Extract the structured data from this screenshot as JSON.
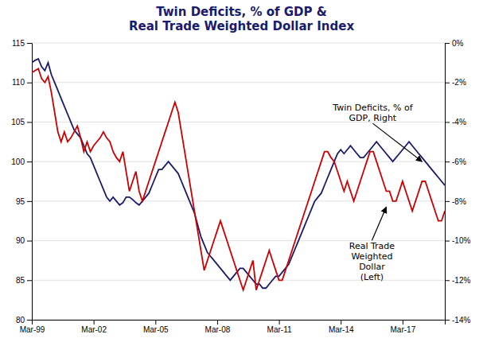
{
  "chart_data": {
    "type": "line",
    "title": "Twin Deficits, % of GDP &\nReal Trade Weighted Dollar Index",
    "categories": [
      "Mar-99",
      null,
      null,
      null,
      null,
      null,
      null,
      null,
      null,
      null,
      null,
      null,
      null,
      null,
      null,
      null,
      null,
      null,
      null,
      "Mar-02",
      null,
      null,
      null,
      null,
      null,
      null,
      null,
      null,
      null,
      null,
      null,
      null,
      null,
      null,
      null,
      null,
      null,
      null,
      "Mar-05",
      null,
      null,
      null,
      null,
      null,
      null,
      null,
      null,
      null,
      null,
      null,
      null,
      null,
      null,
      null,
      null,
      null,
      null,
      "Mar-08",
      null,
      null,
      null,
      null,
      null,
      null,
      null,
      null,
      null,
      null,
      null,
      null,
      null,
      null,
      null,
      null,
      null,
      null,
      "Mar-11",
      null,
      null,
      null,
      null,
      null,
      null,
      null,
      null,
      null,
      null,
      null,
      null,
      null,
      null,
      null,
      null,
      null,
      null,
      "Mar-14",
      null,
      null,
      null,
      null,
      null,
      null,
      null,
      null,
      null,
      null,
      null,
      null,
      null,
      null,
      null,
      null,
      null,
      null,
      "Mar-17",
      null,
      null,
      null,
      null,
      null,
      null,
      null,
      null,
      null,
      null,
      null,
      null,
      null
    ],
    "series": [
      {
        "color": "#1a1a6e",
        "axis": "y",
        "values": [
          112.5,
          112.8,
          113.0,
          112.0,
          111.5,
          112.5,
          111.0,
          110.0,
          109.0,
          108.0,
          107.0,
          106.0,
          105.0,
          104.0,
          103.5,
          103.0,
          102.0,
          101.0,
          100.5,
          99.5,
          98.5,
          97.5,
          96.5,
          95.5,
          95.0,
          95.5,
          95.0,
          94.5,
          94.8,
          95.5,
          95.5,
          95.2,
          94.8,
          94.5,
          95.0,
          95.5,
          96.0,
          97.0,
          98.0,
          99.0,
          99.0,
          99.5,
          100.0,
          99.5,
          99.0,
          98.5,
          97.5,
          96.5,
          95.5,
          94.5,
          93.5,
          92.0,
          90.5,
          89.5,
          88.5,
          88.0,
          87.5,
          87.0,
          86.5,
          86.0,
          85.5,
          85.0,
          85.5,
          86.0,
          86.5,
          86.5,
          86.0,
          85.5,
          85.0,
          84.5,
          84.5,
          84.0,
          84.0,
          84.5,
          85.0,
          85.5,
          85.5,
          86.0,
          86.5,
          87.0,
          88.0,
          89.0,
          90.0,
          91.0,
          92.0,
          93.0,
          94.0,
          95.0,
          95.5,
          96.0,
          97.0,
          98.0,
          99.0,
          100.0,
          101.0,
          101.5,
          101.0,
          101.5,
          102.0,
          101.5,
          101.0,
          100.5,
          100.5,
          101.0,
          101.5,
          102.0,
          102.5,
          102.0,
          101.5,
          101.0,
          100.5,
          100.0,
          100.5,
          101.0,
          101.5,
          102.0,
          102.5,
          102.0,
          101.5,
          101.0,
          100.5,
          100.0,
          99.5,
          99.0,
          98.5,
          98.0,
          97.5,
          97.0
        ]
      },
      {
        "color": "#cc0000",
        "axis": "y2",
        "values": [
          -1.5,
          -1.4,
          -1.3,
          -1.8,
          -2.0,
          -1.7,
          -2.5,
          -3.5,
          -4.5,
          -5.0,
          -4.5,
          -5.0,
          -4.8,
          -4.5,
          -4.2,
          -4.8,
          -5.5,
          -5.0,
          -5.5,
          -5.2,
          -5.0,
          -4.8,
          -4.5,
          -4.8,
          -5.0,
          -5.5,
          -5.8,
          -6.0,
          -5.5,
          -6.5,
          -7.5,
          -7.0,
          -6.5,
          -7.5,
          -8.0,
          -7.5,
          -7.0,
          -6.5,
          -6.0,
          -5.5,
          -5.0,
          -4.5,
          -4.0,
          -3.5,
          -3.0,
          -3.5,
          -4.5,
          -5.5,
          -6.5,
          -7.5,
          -8.5,
          -9.5,
          -10.5,
          -11.5,
          -11.0,
          -10.5,
          -10.0,
          -9.5,
          -9.0,
          -9.5,
          -10.0,
          -10.5,
          -11.0,
          -11.5,
          -12.0,
          -12.5,
          -12.0,
          -11.5,
          -11.0,
          -12.5,
          -12.0,
          -11.5,
          -11.0,
          -10.5,
          -11.0,
          -11.5,
          -12.0,
          -12.0,
          -11.5,
          -11.0,
          -10.5,
          -10.0,
          -9.5,
          -9.0,
          -8.5,
          -8.0,
          -7.5,
          -7.0,
          -6.5,
          -6.0,
          -5.5,
          -5.5,
          -5.8,
          -6.0,
          -6.5,
          -7.0,
          -7.5,
          -7.0,
          -7.5,
          -8.0,
          -7.5,
          -7.0,
          -6.5,
          -6.0,
          -5.5,
          -5.5,
          -6.0,
          -6.5,
          -7.0,
          -7.5,
          -7.5,
          -8.0,
          -8.0,
          -7.5,
          -7.0,
          -7.5,
          -8.0,
          -8.5,
          -8.0,
          -7.5,
          -7.0,
          -7.0,
          -7.5,
          -8.0,
          -8.5,
          -9.0,
          -9.0,
          -8.5
        ]
      }
    ],
    "ylim": [
      80,
      115
    ],
    "yticks": [
      80,
      85,
      90,
      95,
      100,
      105,
      110,
      115
    ],
    "y2lim": [
      -14,
      0
    ],
    "y2ticks": [
      {
        "value": 0,
        "label": "0%"
      },
      {
        "value": -2,
        "label": "-2%"
      },
      {
        "value": -4,
        "label": "-4%"
      },
      {
        "value": -6,
        "label": "-6%"
      },
      {
        "value": -8,
        "label": "-8%"
      },
      {
        "value": -10,
        "label": "-10%"
      },
      {
        "value": -12,
        "label": "-12%"
      },
      {
        "value": -14,
        "label": "-14%"
      }
    ],
    "grid": true,
    "annotations": [
      {
        "text": "Twin Deficits, % of\nGDP, Right",
        "x": 120,
        "y": -6.0,
        "axis": "y2"
      },
      {
        "text": "Real Trade\nWeighted\nDollar\n(Left)",
        "x": 109,
        "y": -8.3,
        "axis": "y2"
      }
    ]
  }
}
